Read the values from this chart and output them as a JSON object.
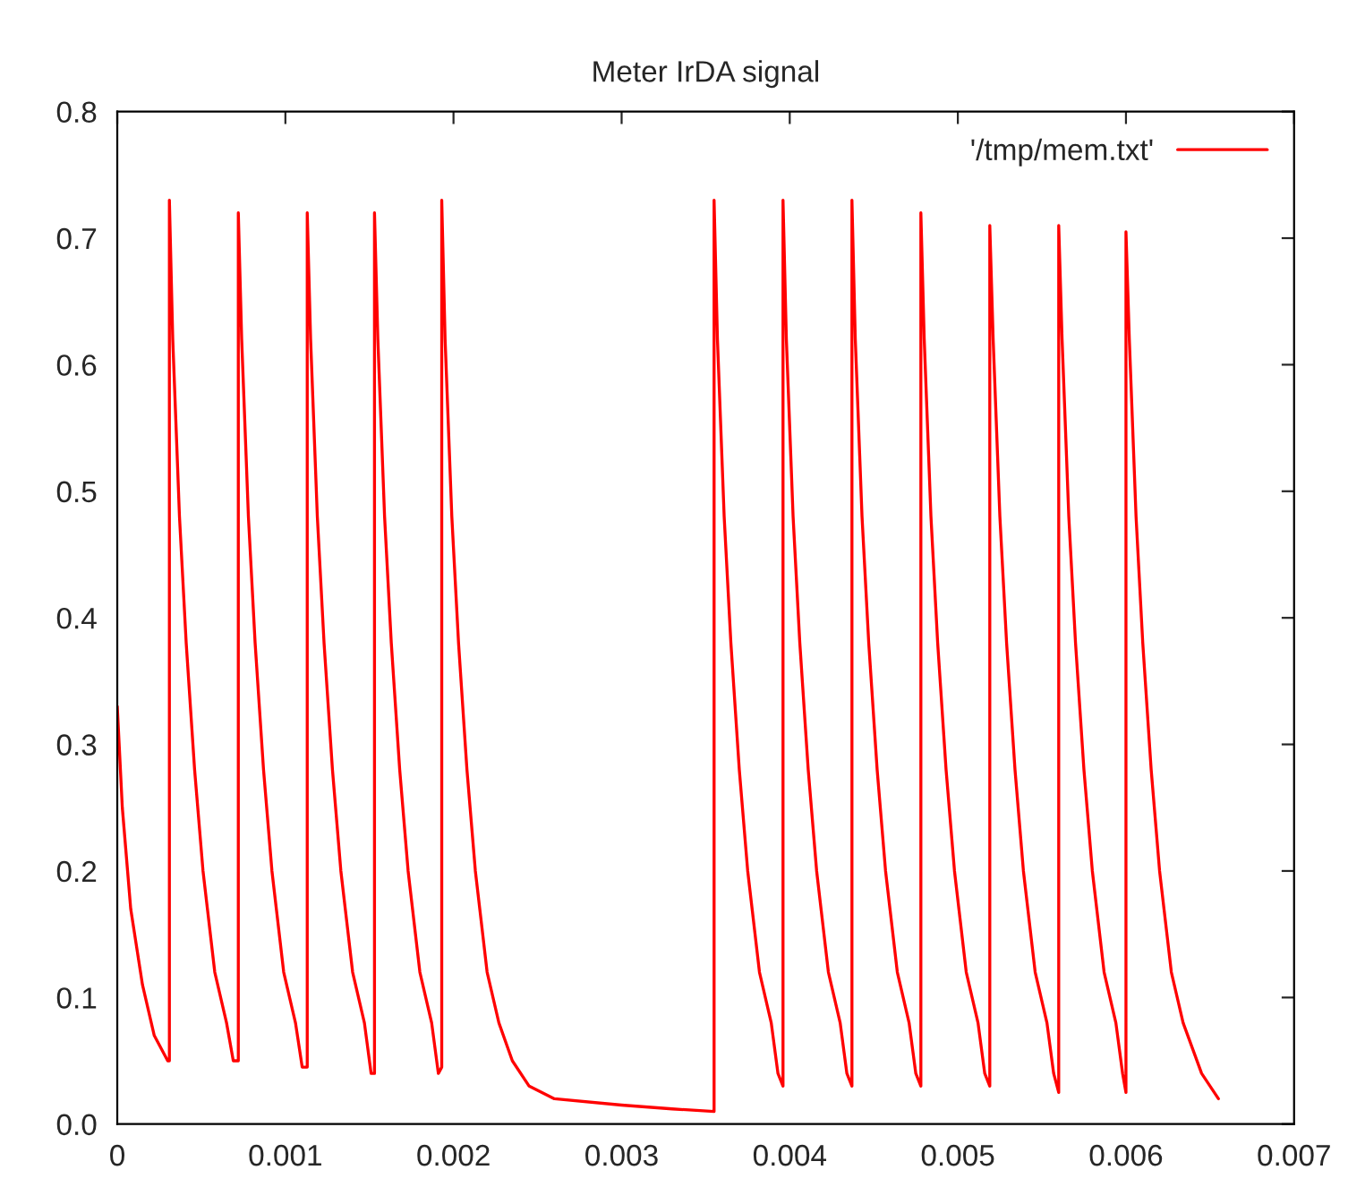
{
  "chart_data": {
    "type": "line",
    "title": "Meter IrDA signal",
    "series": [
      {
        "name": "'/tmp/mem.txt'",
        "color": "#ff0000",
        "x": [
          0,
          3e-05,
          8e-05,
          0.00015,
          0.00022,
          0.0003,
          0.00031,
          0.00031,
          0.00033,
          0.00037,
          0.00041,
          0.00046,
          0.00051,
          0.00058,
          0.00065,
          0.00069,
          0.00072,
          0.00072,
          0.00074,
          0.00078,
          0.00082,
          0.00087,
          0.00092,
          0.00099,
          0.00106,
          0.0011,
          0.00113,
          0.00113,
          0.00115,
          0.00119,
          0.00123,
          0.00128,
          0.00133,
          0.0014,
          0.00147,
          0.00151,
          0.00153,
          0.00153,
          0.00155,
          0.00159,
          0.00163,
          0.00168,
          0.00173,
          0.0018,
          0.00187,
          0.00191,
          0.00193,
          0.00193,
          0.00195,
          0.00199,
          0.00203,
          0.00208,
          0.00213,
          0.0022,
          0.00227,
          0.00235,
          0.00245,
          0.0026,
          0.003,
          0.0033,
          0.00355,
          0.00355,
          0.00357,
          0.00361,
          0.00365,
          0.0037,
          0.00375,
          0.00382,
          0.00389,
          0.00393,
          0.00396,
          0.00396,
          0.00398,
          0.00402,
          0.00406,
          0.00411,
          0.00416,
          0.00423,
          0.0043,
          0.00434,
          0.00437,
          0.00437,
          0.00439,
          0.00443,
          0.00447,
          0.00452,
          0.00457,
          0.00464,
          0.00471,
          0.00475,
          0.00478,
          0.00478,
          0.0048,
          0.00484,
          0.00488,
          0.00493,
          0.00498,
          0.00505,
          0.00512,
          0.00516,
          0.00519,
          0.00519,
          0.00521,
          0.00525,
          0.00529,
          0.00534,
          0.00539,
          0.00546,
          0.00553,
          0.00557,
          0.0056,
          0.0056,
          0.00562,
          0.00566,
          0.0057,
          0.00575,
          0.0058,
          0.00587,
          0.00594,
          0.00598,
          0.006,
          0.006,
          0.00602,
          0.00606,
          0.0061,
          0.00615,
          0.0062,
          0.00627,
          0.00634,
          0.00645,
          0.00655
        ],
        "values": [
          0.33,
          0.25,
          0.17,
          0.11,
          0.07,
          0.05,
          0.05,
          0.73,
          0.62,
          0.48,
          0.38,
          0.28,
          0.2,
          0.12,
          0.08,
          0.05,
          0.05,
          0.72,
          0.62,
          0.48,
          0.38,
          0.28,
          0.2,
          0.12,
          0.08,
          0.045,
          0.045,
          0.72,
          0.62,
          0.48,
          0.38,
          0.28,
          0.2,
          0.12,
          0.08,
          0.04,
          0.04,
          0.72,
          0.62,
          0.48,
          0.38,
          0.28,
          0.2,
          0.12,
          0.08,
          0.04,
          0.045,
          0.73,
          0.62,
          0.48,
          0.38,
          0.28,
          0.2,
          0.12,
          0.08,
          0.05,
          0.03,
          0.02,
          0.015,
          0.012,
          0.01,
          0.73,
          0.62,
          0.48,
          0.38,
          0.28,
          0.2,
          0.12,
          0.08,
          0.04,
          0.03,
          0.73,
          0.62,
          0.48,
          0.38,
          0.28,
          0.2,
          0.12,
          0.08,
          0.04,
          0.03,
          0.73,
          0.62,
          0.48,
          0.38,
          0.28,
          0.2,
          0.12,
          0.08,
          0.04,
          0.03,
          0.72,
          0.62,
          0.48,
          0.38,
          0.28,
          0.2,
          0.12,
          0.08,
          0.04,
          0.03,
          0.71,
          0.62,
          0.48,
          0.38,
          0.28,
          0.2,
          0.12,
          0.08,
          0.04,
          0.025,
          0.71,
          0.62,
          0.48,
          0.38,
          0.28,
          0.2,
          0.12,
          0.08,
          0.04,
          0.025,
          0.705,
          0.62,
          0.48,
          0.38,
          0.28,
          0.2,
          0.12,
          0.08,
          0.04,
          0.02
        ]
      }
    ],
    "xlim": [
      0,
      0.007
    ],
    "xticks": [
      0,
      0.001,
      0.002,
      0.003,
      0.004,
      0.005,
      0.006,
      0.007
    ],
    "ylim": [
      0,
      0.8
    ],
    "yticks": [
      {
        "value": 0,
        "label": "0.0"
      },
      0.1,
      0.2,
      0.3,
      0.4,
      0.5,
      0.6,
      0.7,
      0.8
    ],
    "grid": false,
    "legend": "top right",
    "marker": "none",
    "line_style": "solid"
  }
}
